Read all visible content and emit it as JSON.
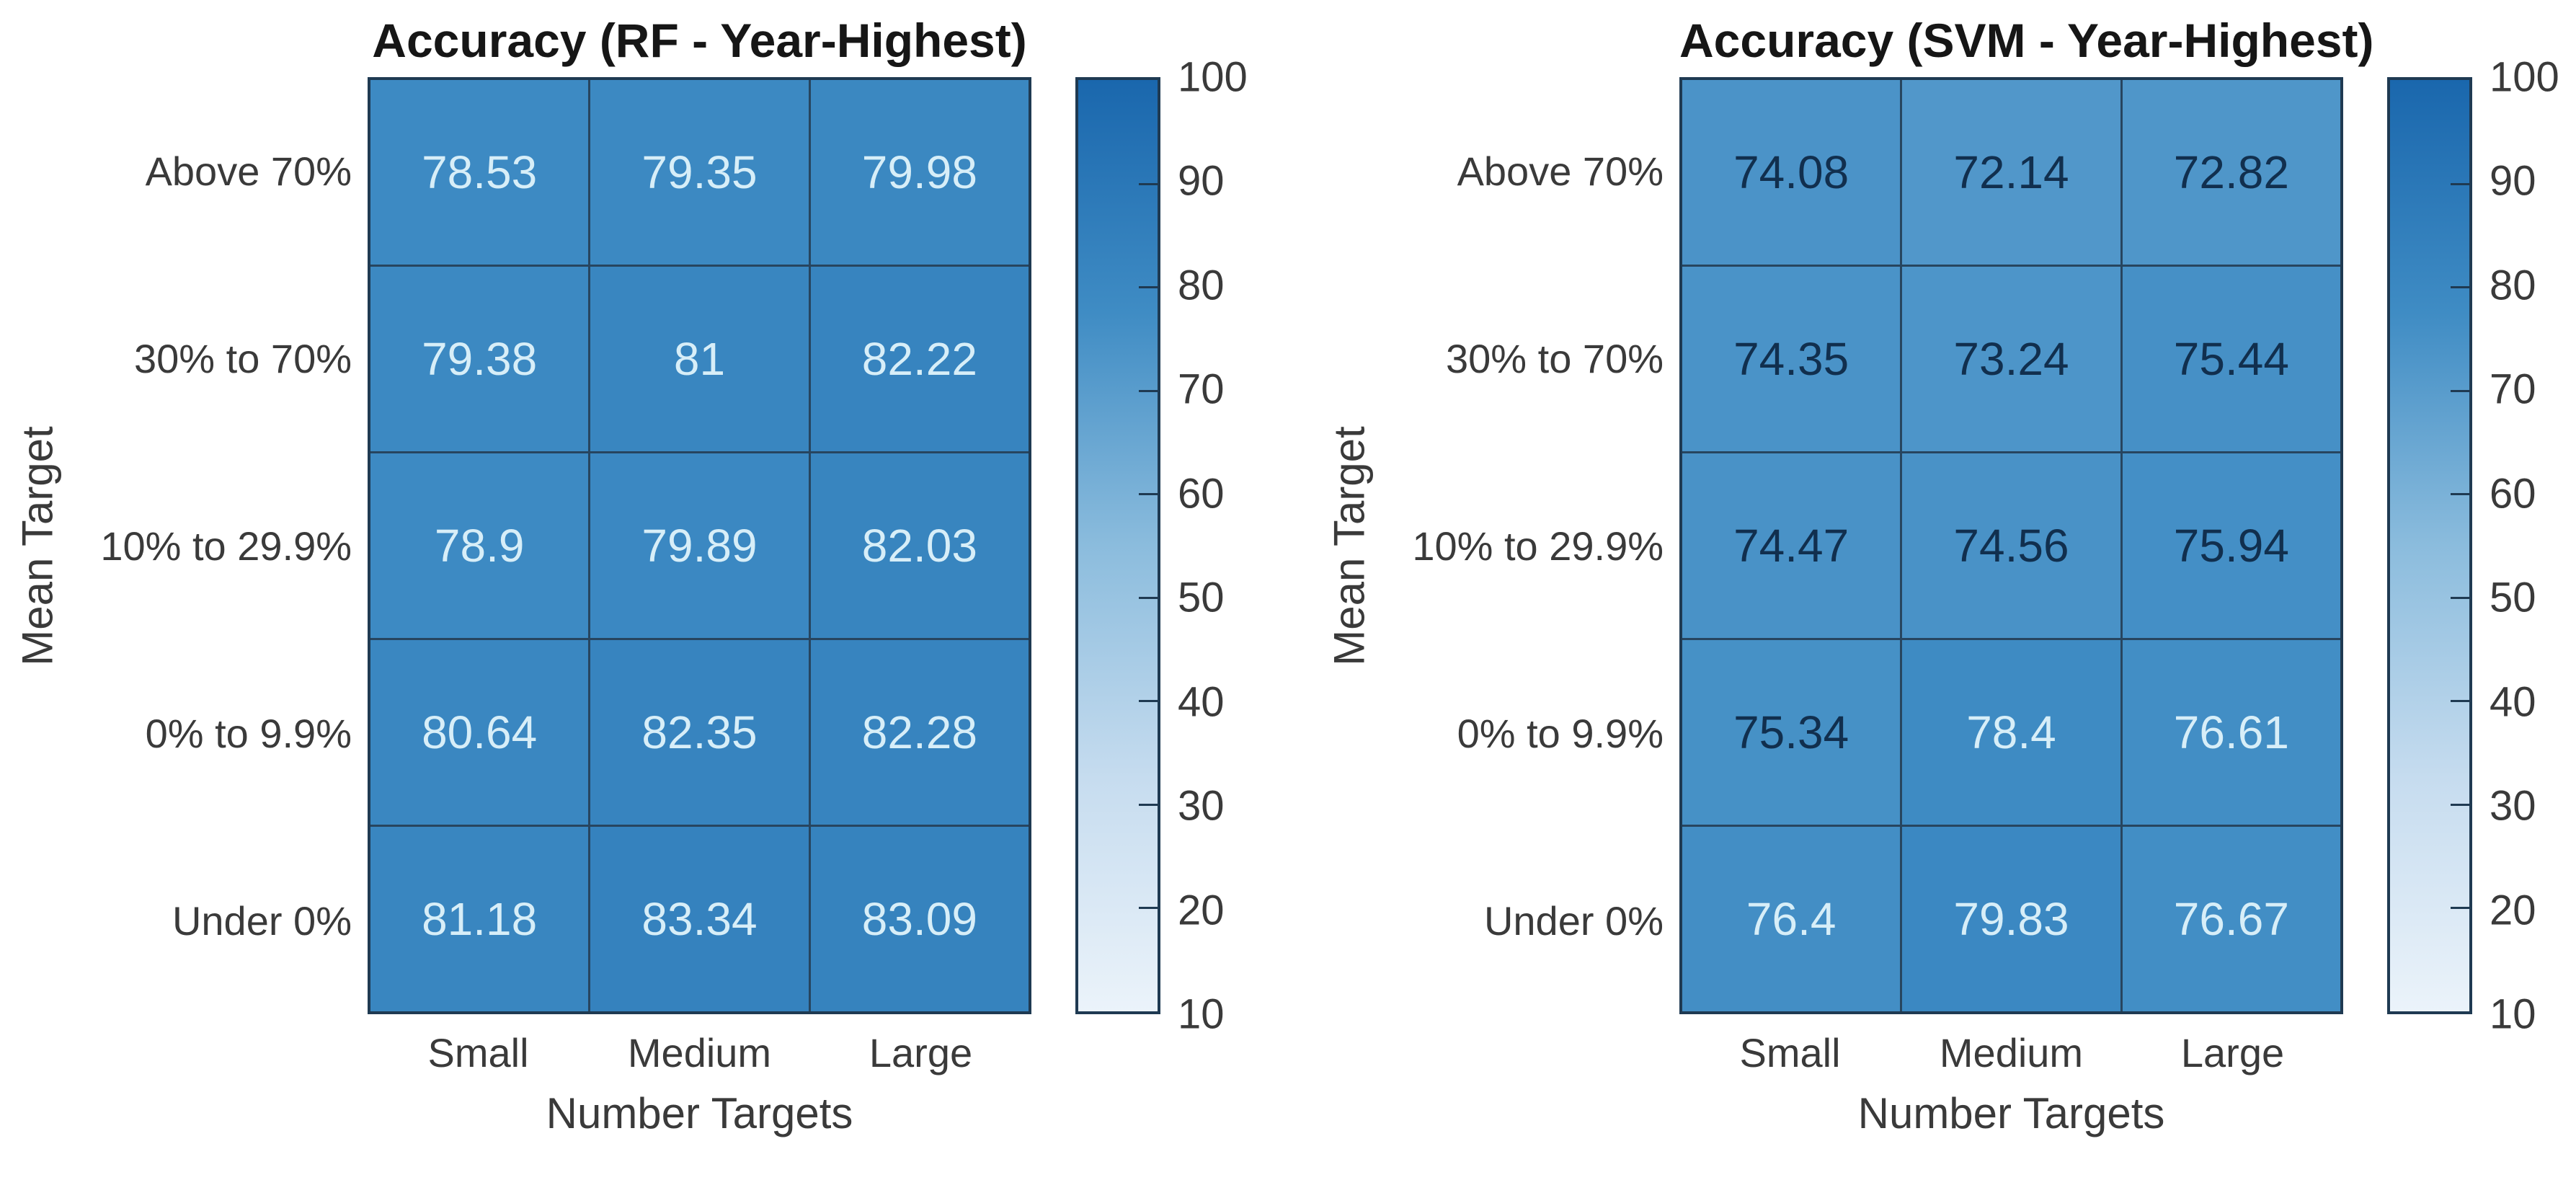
{
  "page": {
    "background": "#ffffff"
  },
  "chart_data": [
    {
      "type": "heatmap",
      "title": "Accuracy (RF - Year-Highest)",
      "xlabel": "Number Targets",
      "ylabel": "Mean Target",
      "columns": [
        "Small",
        "Medium",
        "Large"
      ],
      "rows": [
        "Above 70%",
        "30% to 70%",
        "10% to 29.9%",
        "0% to 9.9%",
        "Under 0%"
      ],
      "values": [
        [
          78.53,
          79.35,
          79.98
        ],
        [
          79.38,
          81,
          82.22
        ],
        [
          78.9,
          79.89,
          82.03
        ],
        [
          80.64,
          82.35,
          82.28
        ],
        [
          81.18,
          83.34,
          83.09
        ]
      ],
      "colorbar": {
        "min": 10,
        "max": 100,
        "ticks": [
          100,
          90,
          80,
          70,
          60,
          50,
          40,
          30,
          20,
          10
        ]
      },
      "legend_position": "right",
      "grid": "on"
    },
    {
      "type": "heatmap",
      "title": "Accuracy (SVM - Year-Highest)",
      "xlabel": "Number Targets",
      "ylabel": "Mean Target",
      "columns": [
        "Small",
        "Medium",
        "Large"
      ],
      "rows": [
        "Above 70%",
        "30% to 70%",
        "10% to 29.9%",
        "0% to 9.9%",
        "Under 0%"
      ],
      "values": [
        [
          74.08,
          72.14,
          72.82
        ],
        [
          74.35,
          73.24,
          75.44
        ],
        [
          74.47,
          74.56,
          75.94
        ],
        [
          75.34,
          78.4,
          76.61
        ],
        [
          76.4,
          79.83,
          76.67
        ]
      ],
      "colorbar": {
        "min": 10,
        "max": 100,
        "ticks": [
          100,
          90,
          80,
          70,
          60,
          50,
          40,
          30,
          20,
          10
        ]
      },
      "legend_position": "right",
      "grid": "on"
    }
  ],
  "style": {
    "colormap_stops": [
      [
        0,
        "#ebf3fa"
      ],
      [
        0.25,
        "#c6dcef"
      ],
      [
        0.5,
        "#8bbcdd"
      ],
      [
        0.75,
        "#3f8cc4"
      ],
      [
        1,
        "#1a67ad"
      ]
    ],
    "value_range": [
      10,
      100
    ],
    "light_text_threshold": 76.2,
    "cell_text_light": "#d7eef8",
    "cell_text_dark": "#112f4e",
    "grid_line_color": "#27455f",
    "border_color": "#1f3a52",
    "axis_text_color": "#3a3a3a",
    "title_color": "#161616"
  }
}
